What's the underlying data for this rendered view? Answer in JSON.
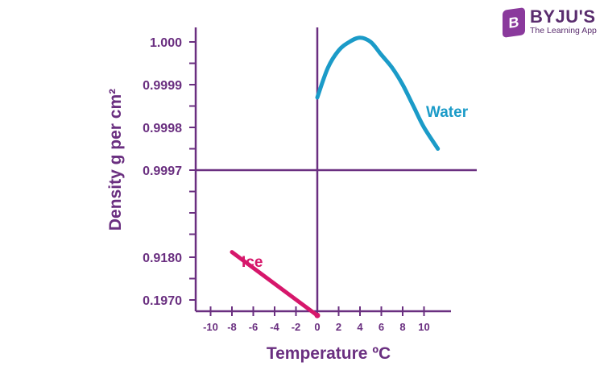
{
  "brand": {
    "badge": "B",
    "name": "BYJU'S",
    "tagline": "The Learning App"
  },
  "colors": {
    "axis": "#6a2f80",
    "water": "#1b9bc8",
    "ice": "#d6176b"
  },
  "chart_data": {
    "type": "line",
    "xlabel": "Temperature ºC",
    "ylabel": "Density g per cm²",
    "x_ticks": [
      -10,
      -8,
      -6,
      -4,
      -2,
      0,
      2,
      4,
      6,
      8,
      10
    ],
    "y_tick_labels": [
      "1.000",
      "0.9999",
      "0.9998",
      "0.9997",
      "0.9180",
      "0.1970"
    ],
    "grid": false,
    "series": [
      {
        "name": "Water",
        "x": [
          0,
          1,
          2,
          3,
          4,
          5,
          6,
          7,
          8,
          9,
          10,
          11.3
        ],
        "y": [
          0.99987,
          0.99994,
          0.99998,
          1.0,
          1.00001,
          1.0,
          0.99997,
          0.99994,
          0.9999,
          0.99985,
          0.9998,
          0.99975
        ]
      },
      {
        "name": "Ice",
        "x": [
          -8,
          0
        ],
        "y": [
          0.9184,
          0.9168
        ]
      }
    ]
  }
}
